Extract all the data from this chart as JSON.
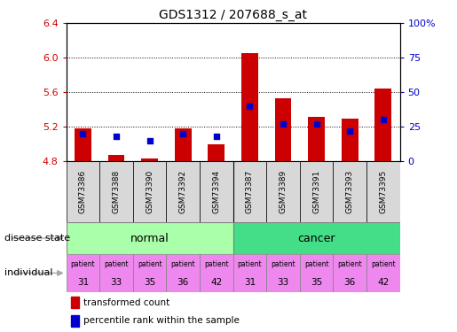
{
  "title": "GDS1312 / 207688_s_at",
  "samples": [
    "GSM73386",
    "GSM73388",
    "GSM73390",
    "GSM73392",
    "GSM73394",
    "GSM73387",
    "GSM73389",
    "GSM73391",
    "GSM73393",
    "GSM73395"
  ],
  "transformed_count": [
    5.18,
    4.87,
    4.83,
    5.18,
    4.99,
    6.05,
    5.53,
    5.31,
    5.29,
    5.64
  ],
  "percentile_rank": [
    20,
    18,
    15,
    20,
    18,
    40,
    27,
    27,
    22,
    30
  ],
  "ylim": [
    4.8,
    6.4
  ],
  "yticks": [
    4.8,
    5.2,
    5.6,
    6.0,
    6.4
  ],
  "right_ylim": [
    0,
    100
  ],
  "right_yticks": [
    0,
    25,
    50,
    75,
    100
  ],
  "right_yticklabels": [
    "0",
    "25",
    "50",
    "75",
    "100%"
  ],
  "bar_color": "#cc0000",
  "dot_color": "#0000cc",
  "normal_color": "#aaffaa",
  "cancer_color": "#44dd88",
  "patient_color": "#ee88ee",
  "patients": [
    31,
    33,
    35,
    36,
    42,
    31,
    33,
    35,
    36,
    42
  ],
  "red_color": "#cc0000",
  "blue_color": "#0000cc",
  "bar_bottom": 4.8,
  "legend_entries": [
    "transformed count",
    "percentile rank within the sample"
  ],
  "legend_colors": [
    "#cc0000",
    "#0000cc"
  ],
  "sample_box_color": "#d8d8d8",
  "label_fontsize": 8,
  "tick_fontsize": 8
}
